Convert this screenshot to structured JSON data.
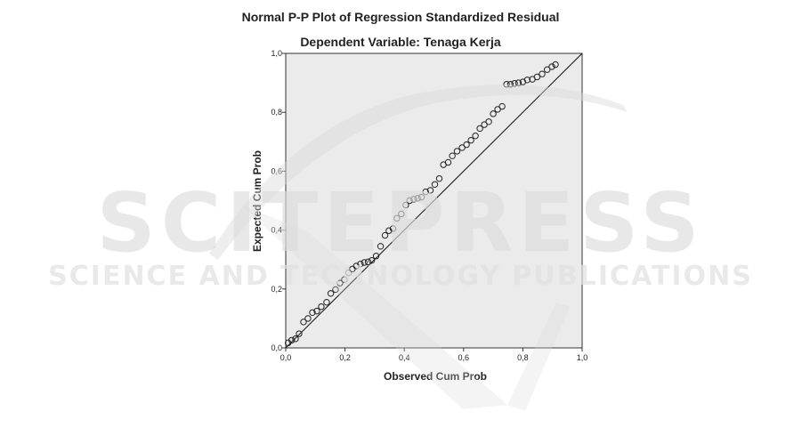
{
  "watermark": {
    "brand": "SCITEPRESS",
    "tagline": "SCIENCE AND TECHNOLOGY PUBLICATIONS"
  },
  "colors": {
    "plot_background": "#ebebeb",
    "marker_stroke": "#222222",
    "reference_line": "#111111",
    "text": "#222222"
  },
  "chart_data": {
    "type": "scatter",
    "title": "Normal P-P Plot of Regression Standardized Residual",
    "subtitle": "Dependent Variable: Tenaga Kerja",
    "xlabel": "Observed Cum Prob",
    "ylabel": "Expected Cum Prob",
    "xlim": [
      0,
      1
    ],
    "ylim": [
      0,
      1
    ],
    "x_ticks": [
      0,
      0.2,
      0.4,
      0.6,
      0.8,
      1.0
    ],
    "y_ticks": [
      0,
      0.2,
      0.4,
      0.6,
      0.8,
      1.0
    ],
    "x_tick_labels": [
      "0,0",
      "0,2",
      "0,4",
      "0,6",
      "0,8",
      "1,0"
    ],
    "y_tick_labels": [
      "0,0",
      "0,2",
      "0,4",
      "0,6",
      "0,8",
      "1,0"
    ],
    "grid": false,
    "reference_line": {
      "from": [
        0,
        0
      ],
      "to": [
        1,
        1
      ]
    },
    "points": [
      [
        0.008,
        0.017
      ],
      [
        0.02,
        0.026
      ],
      [
        0.033,
        0.031
      ],
      [
        0.045,
        0.048
      ],
      [
        0.06,
        0.088
      ],
      [
        0.075,
        0.1
      ],
      [
        0.09,
        0.12
      ],
      [
        0.105,
        0.125
      ],
      [
        0.12,
        0.14
      ],
      [
        0.138,
        0.155
      ],
      [
        0.152,
        0.185
      ],
      [
        0.168,
        0.198
      ],
      [
        0.183,
        0.22
      ],
      [
        0.198,
        0.232
      ],
      [
        0.212,
        0.255
      ],
      [
        0.225,
        0.268
      ],
      [
        0.238,
        0.278
      ],
      [
        0.252,
        0.285
      ],
      [
        0.265,
        0.29
      ],
      [
        0.278,
        0.292
      ],
      [
        0.29,
        0.297
      ],
      [
        0.305,
        0.312
      ],
      [
        0.32,
        0.345
      ],
      [
        0.335,
        0.382
      ],
      [
        0.348,
        0.398
      ],
      [
        0.362,
        0.405
      ],
      [
        0.375,
        0.44
      ],
      [
        0.39,
        0.455
      ],
      [
        0.405,
        0.485
      ],
      [
        0.418,
        0.5
      ],
      [
        0.432,
        0.505
      ],
      [
        0.445,
        0.508
      ],
      [
        0.458,
        0.512
      ],
      [
        0.472,
        0.53
      ],
      [
        0.488,
        0.535
      ],
      [
        0.503,
        0.555
      ],
      [
        0.518,
        0.575
      ],
      [
        0.532,
        0.622
      ],
      [
        0.548,
        0.63
      ],
      [
        0.562,
        0.652
      ],
      [
        0.578,
        0.668
      ],
      [
        0.595,
        0.68
      ],
      [
        0.61,
        0.69
      ],
      [
        0.625,
        0.705
      ],
      [
        0.64,
        0.72
      ],
      [
        0.655,
        0.745
      ],
      [
        0.67,
        0.758
      ],
      [
        0.685,
        0.768
      ],
      [
        0.7,
        0.795
      ],
      [
        0.715,
        0.81
      ],
      [
        0.73,
        0.82
      ],
      [
        0.745,
        0.895
      ],
      [
        0.758,
        0.895
      ],
      [
        0.772,
        0.898
      ],
      [
        0.785,
        0.9
      ],
      [
        0.8,
        0.903
      ],
      [
        0.815,
        0.91
      ],
      [
        0.832,
        0.912
      ],
      [
        0.848,
        0.92
      ],
      [
        0.865,
        0.93
      ],
      [
        0.882,
        0.945
      ],
      [
        0.898,
        0.955
      ],
      [
        0.91,
        0.962
      ]
    ]
  }
}
